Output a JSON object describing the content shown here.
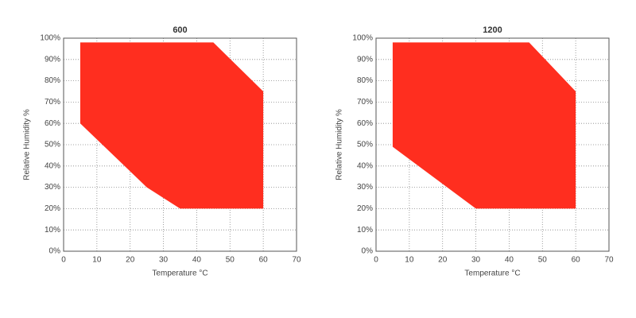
{
  "chart_data": [
    {
      "type": "polygon",
      "title": "600",
      "x_label": "Temperature °C",
      "y_label": "Relative Humidity %",
      "x": [
        5,
        45,
        60,
        60,
        35,
        25,
        5
      ],
      "values": [
        98,
        98,
        75,
        20,
        20,
        30,
        60
      ],
      "color": "#ff2e1f",
      "xlim": [
        0,
        70
      ],
      "xticks": [
        0,
        10,
        20,
        30,
        40,
        50,
        60,
        70
      ],
      "ylim": [
        0,
        100
      ],
      "yticks": [
        {
          "value": 0,
          "label": "0%"
        },
        {
          "value": 10,
          "label": "10%"
        },
        {
          "value": 20,
          "label": "20%"
        },
        {
          "value": 30,
          "label": "30%"
        },
        {
          "value": 40,
          "label": "40%"
        },
        {
          "value": 50,
          "label": "50%"
        },
        {
          "value": 60,
          "label": "60%"
        },
        {
          "value": 70,
          "label": "70%"
        },
        {
          "value": 80,
          "label": "80%"
        },
        {
          "value": 90,
          "label": "90%"
        },
        {
          "value": 100,
          "label": "100%"
        }
      ],
      "grid": true
    },
    {
      "type": "polygon",
      "title": "1200",
      "x_label": "Temperature °C",
      "y_label": "Relative Humidity %",
      "x": [
        5,
        46,
        60,
        60,
        30,
        5
      ],
      "values": [
        98,
        98,
        75,
        20,
        20,
        49
      ],
      "color": "#ff2e1f",
      "xlim": [
        0,
        70
      ],
      "xticks": [
        0,
        10,
        20,
        30,
        40,
        50,
        60,
        70
      ],
      "ylim": [
        0,
        100
      ],
      "yticks": [
        {
          "value": 0,
          "label": "0%"
        },
        {
          "value": 10,
          "label": "10%"
        },
        {
          "value": 20,
          "label": "20%"
        },
        {
          "value": 30,
          "label": "30%"
        },
        {
          "value": 40,
          "label": "40%"
        },
        {
          "value": 50,
          "label": "50%"
        },
        {
          "value": 60,
          "label": "60%"
        },
        {
          "value": 70,
          "label": "70%"
        },
        {
          "value": 80,
          "label": "80%"
        },
        {
          "value": 90,
          "label": "90%"
        },
        {
          "value": 100,
          "label": "100%"
        }
      ],
      "grid": true
    }
  ]
}
